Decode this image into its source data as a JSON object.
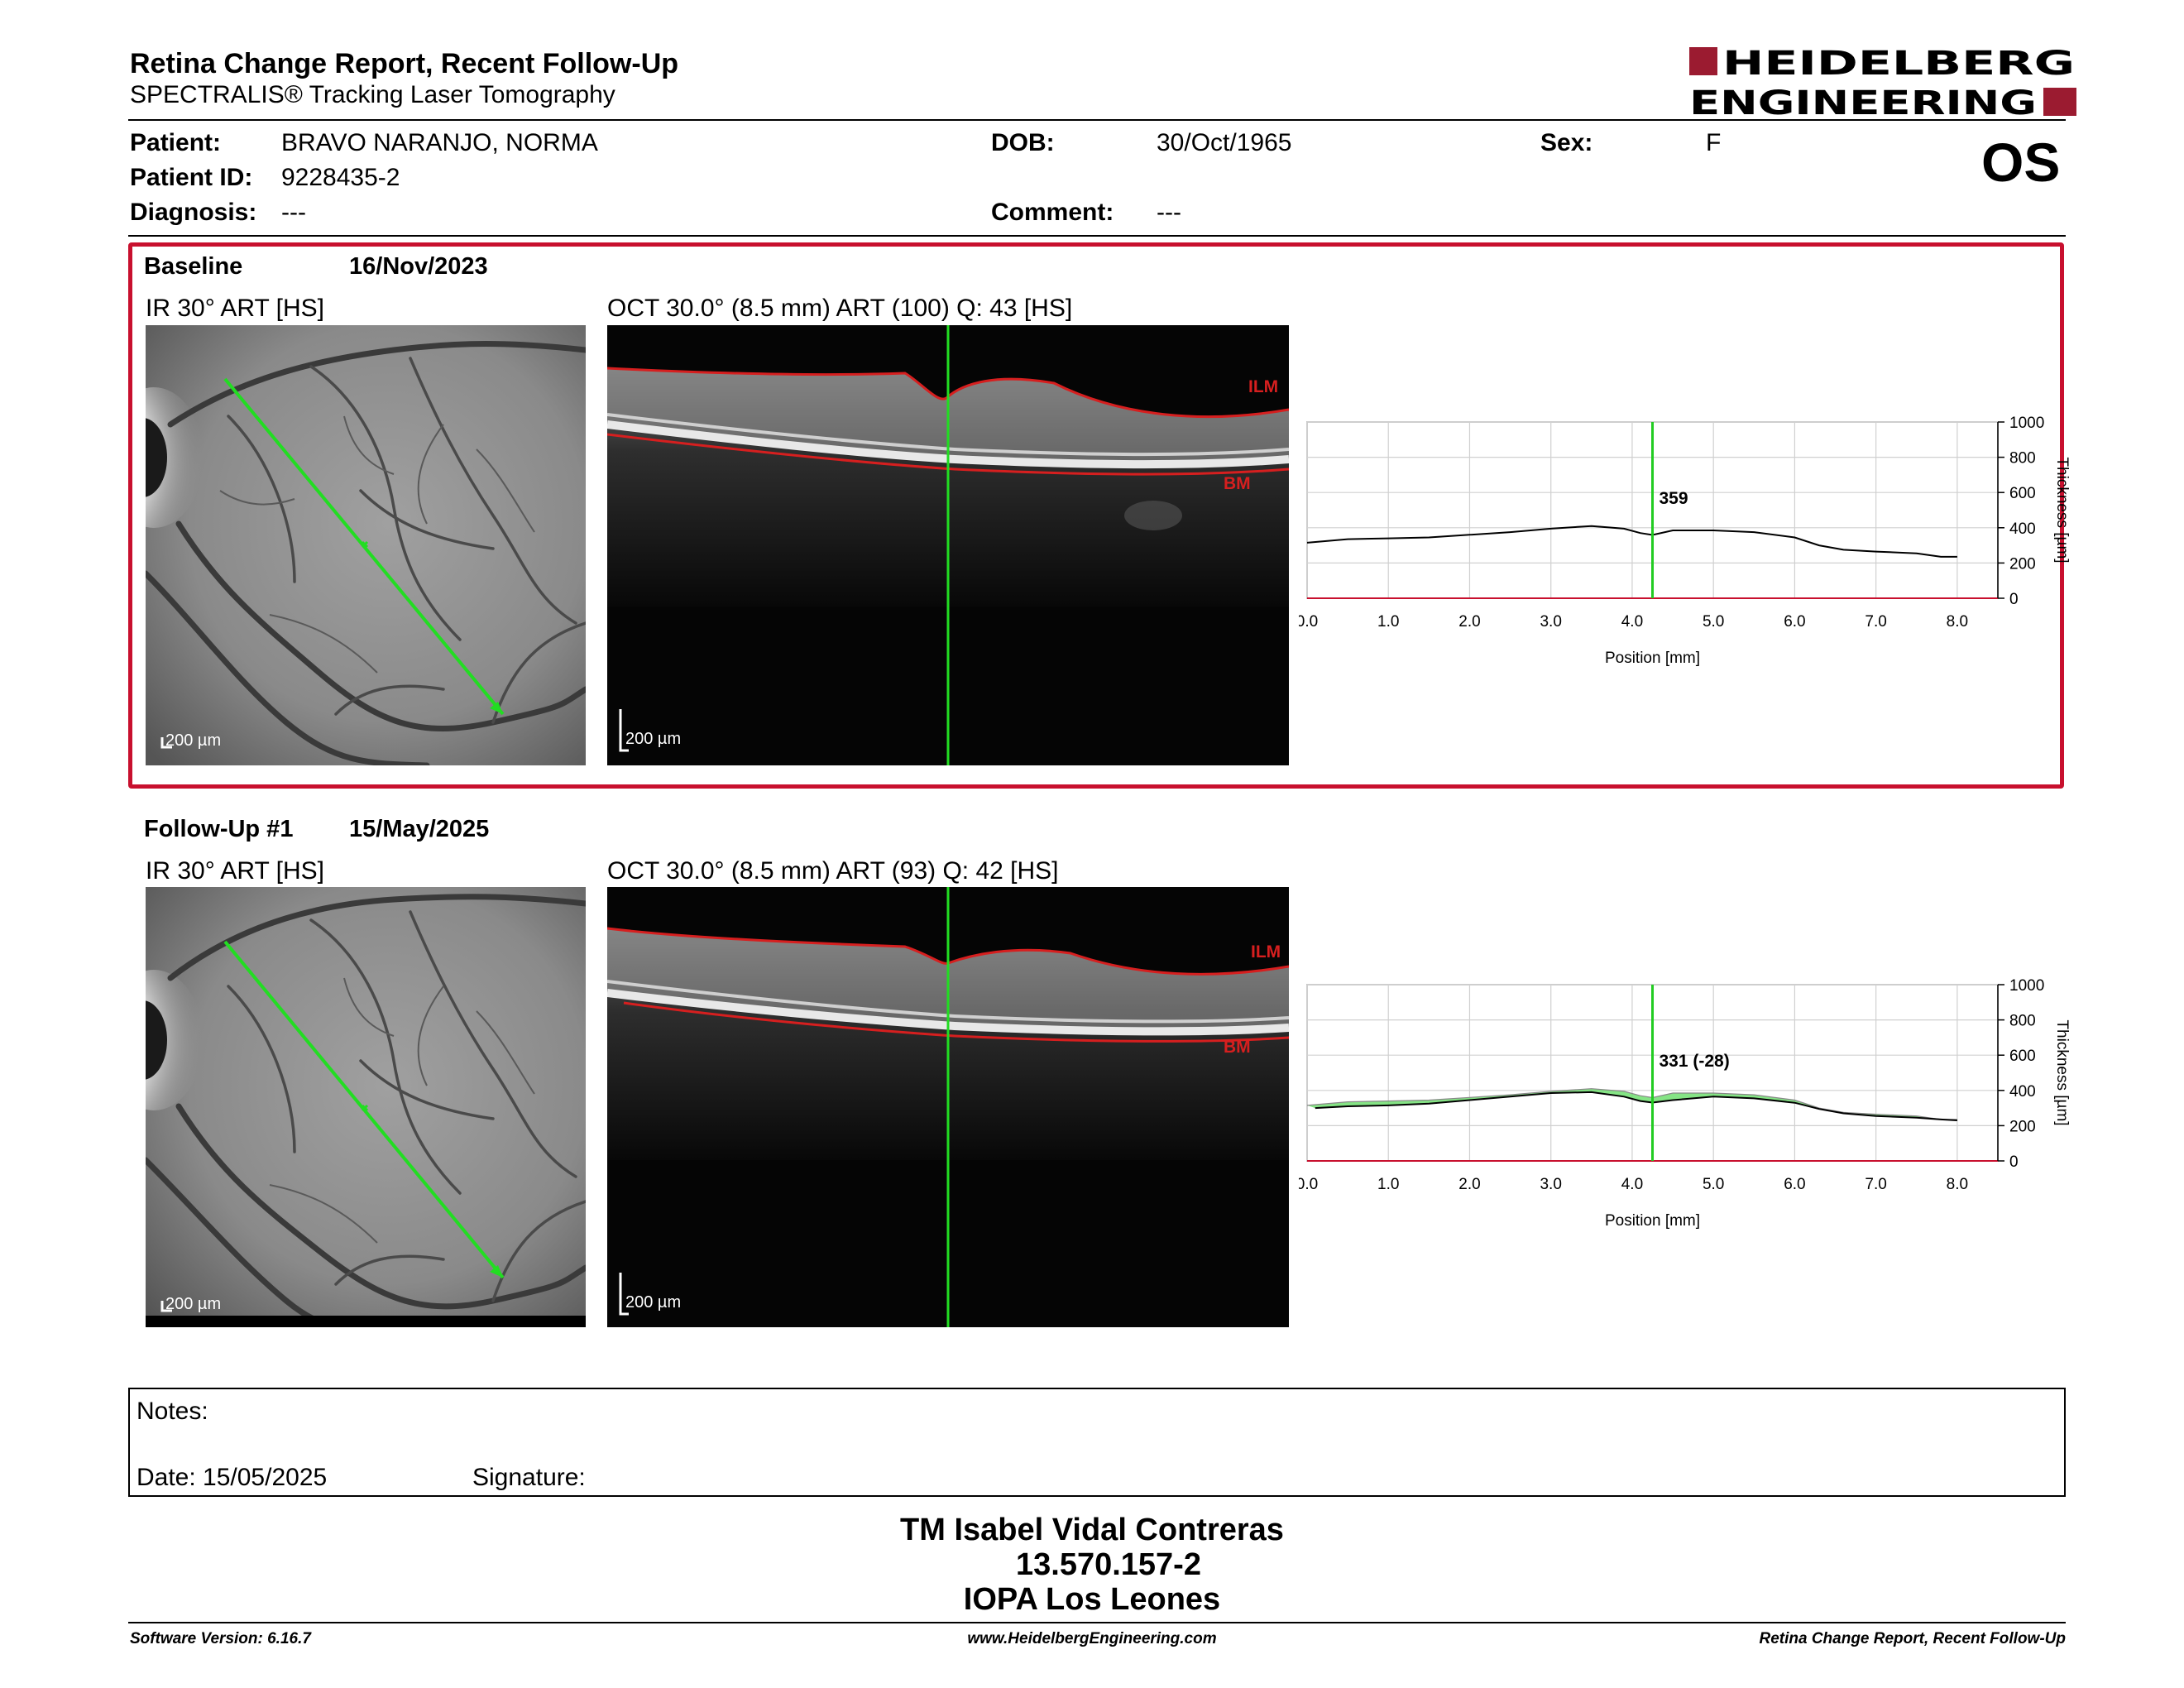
{
  "header": {
    "title": "Retina Change Report, Recent Follow-Up",
    "subtitle": "SPECTRALIS® Tracking Laser Tomography",
    "logo_line1": "HEIDELBERG",
    "logo_line2": "ENGINEERING",
    "brand_color": "#9b1b30"
  },
  "patient": {
    "patient_label": "Patient:",
    "patient_value": "BRAVO NARANJO, NORMA",
    "id_label": "Patient ID:",
    "id_value": "9228435-2",
    "diagnosis_label": "Diagnosis:",
    "diagnosis_value": "---",
    "dob_label": "DOB:",
    "dob_value": "30/Oct/1965",
    "comment_label": "Comment:",
    "comment_value": "---",
    "sex_label": "Sex:",
    "sex_value": "F",
    "eye": "OS"
  },
  "exams": [
    {
      "label": "Baseline",
      "date": "16/Nov/2023",
      "ir_label": "IR 30° ART [HS]",
      "oct_label": "OCT 30.0° (8.5 mm) ART (100) Q: 43 [HS]",
      "ir_scale": "200 µm",
      "oct_scale": "200 µm",
      "ilm": "ILM",
      "bm": "BM",
      "highlight_color": "#c8102e"
    },
    {
      "label": "Follow-Up #1",
      "date": "15/May/2025",
      "ir_label": "IR 30° ART [HS]",
      "oct_label": "OCT 30.0° (8.5 mm) ART (93) Q: 42 [HS]",
      "ir_scale": "200 µm",
      "oct_scale": "200 µm",
      "ilm": "ILM",
      "bm": "BM"
    }
  ],
  "chart_data": [
    {
      "type": "line",
      "xlabel": "Position [mm]",
      "ylabel": "Thickness [µm]",
      "xlim": [
        0,
        8.5
      ],
      "ylim": [
        0,
        1000
      ],
      "x_ticks": [
        "0.0",
        "1.0",
        "2.0",
        "3.0",
        "4.0",
        "5.0",
        "6.0",
        "7.0",
        "8.0"
      ],
      "y_ticks": [
        "0",
        "200",
        "400",
        "600",
        "800",
        "1000"
      ],
      "cursor_x": 4.25,
      "cursor_label": "359",
      "cursor_color": "#22cc22",
      "series": [
        {
          "x": [
            0.0,
            0.5,
            1.0,
            1.5,
            2.0,
            2.5,
            3.0,
            3.5,
            3.9,
            4.1,
            4.25,
            4.5,
            5.0,
            5.5,
            6.0,
            6.3,
            6.6,
            7.0,
            7.5,
            7.8,
            8.0
          ],
          "values": [
            315,
            335,
            340,
            345,
            360,
            375,
            395,
            410,
            395,
            370,
            359,
            385,
            385,
            375,
            345,
            300,
            275,
            265,
            255,
            235,
            235
          ]
        }
      ]
    },
    {
      "type": "area",
      "xlabel": "Position [mm]",
      "ylabel": "Thickness [µm]",
      "xlim": [
        0,
        8.5
      ],
      "ylim": [
        0,
        1000
      ],
      "x_ticks": [
        "0.0",
        "1.0",
        "2.0",
        "3.0",
        "4.0",
        "5.0",
        "6.0",
        "7.0",
        "8.0"
      ],
      "y_ticks": [
        "0",
        "200",
        "400",
        "600",
        "800",
        "1000"
      ],
      "cursor_x": 4.25,
      "cursor_label": "331 (-28)",
      "cursor_color": "#22cc22",
      "change_color": "#66dd66",
      "series": [
        {
          "x": [
            0.0,
            0.5,
            1.0,
            1.5,
            2.0,
            2.5,
            3.0,
            3.5,
            3.9,
            4.1,
            4.25,
            4.5,
            5.0,
            5.5,
            6.0,
            6.3,
            6.6,
            7.0,
            7.5,
            7.8,
            8.0
          ],
          "values": [
            315,
            335,
            340,
            345,
            360,
            375,
            395,
            410,
            395,
            370,
            359,
            385,
            385,
            375,
            345,
            300,
            275,
            265,
            255,
            235,
            235
          ]
        },
        {
          "x": [
            0.1,
            0.5,
            1.0,
            1.5,
            2.0,
            2.5,
            3.0,
            3.5,
            3.9,
            4.1,
            4.25,
            4.5,
            5.0,
            5.5,
            6.0,
            6.3,
            6.6,
            7.0,
            7.5,
            7.8,
            8.0
          ],
          "values": [
            300,
            310,
            315,
            325,
            345,
            365,
            385,
            390,
            365,
            340,
            331,
            345,
            365,
            355,
            330,
            295,
            270,
            255,
            245,
            235,
            230
          ]
        }
      ]
    }
  ],
  "notes": {
    "notes_label": "Notes:",
    "date_label": "Date: 15/05/2025",
    "signature_label": "Signature:"
  },
  "signer": {
    "name": "TM Isabel Vidal Contreras",
    "id": "13.570.157-2",
    "org": "IOPA Los Leones"
  },
  "footer": {
    "software": "Software Version: 6.16.7",
    "website": "www.HeidelbergEngineering.com",
    "report": "Retina Change Report, Recent Follow-Up"
  }
}
